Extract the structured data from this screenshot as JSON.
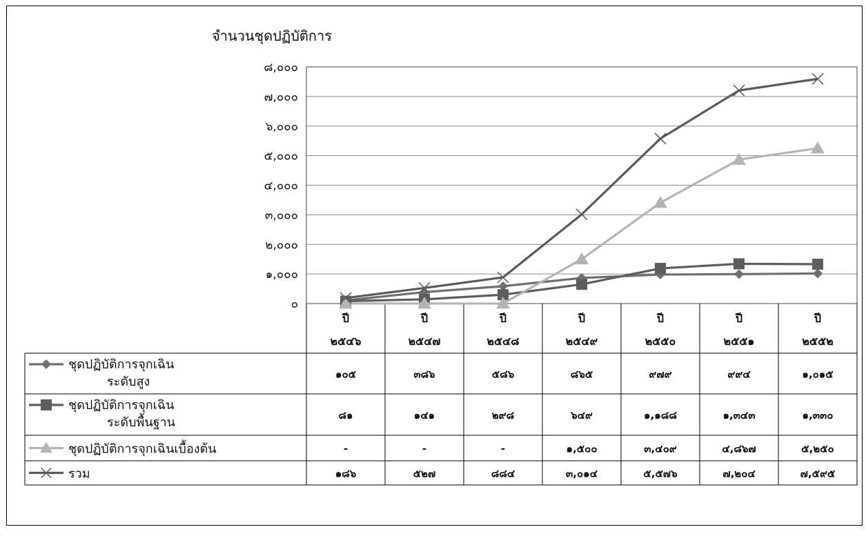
{
  "chart_data": {
    "type": "line",
    "ylabel": "จำนวนชุดปฏิบัติการ",
    "ylim": [
      0,
      8000
    ],
    "yticks": [
      "๐",
      "๑,๐๐๐",
      "๒,๐๐๐",
      "๓,๐๐๐",
      "๔,๐๐๐",
      "๕,๐๐๐",
      "๖,๐๐๐",
      "๗,๐๐๐",
      "๘,๐๐๐"
    ],
    "categories": [
      {
        "line1": "ปี",
        "line2": "๒๕๔๖"
      },
      {
        "line1": "ปี",
        "line2": "๒๕๔๗"
      },
      {
        "line1": "ปี",
        "line2": "๒๕๔๘"
      },
      {
        "line1": "ปี",
        "line2": "๒๕๔๙"
      },
      {
        "line1": "ปี",
        "line2": "๒๕๕๐"
      },
      {
        "line1": "ปี",
        "line2": "๒๕๕๑"
      },
      {
        "line1": "ปี",
        "line2": "๒๕๕๒"
      }
    ],
    "grid": true,
    "legend": "data-table",
    "series": [
      {
        "name": [
          "ชุดปฏิบัติการจุกเฉิน",
          "ระดับสูง"
        ],
        "marker": "diamond",
        "color": "#6e6e6e",
        "values": [
          105,
          386,
          586,
          865,
          979,
          994,
          1015
        ],
        "labels": [
          "๑๐๕",
          "๓๘๖",
          "๕๘๖",
          "๘๖๕",
          "๙๗๙",
          "๙๙๔",
          "๑,๐๑๕"
        ]
      },
      {
        "name": [
          "ชุดปฏิบัติการจุกเฉิน",
          "ระดับพื้นฐาน"
        ],
        "marker": "square",
        "color": "#5d5d5d",
        "values": [
          81,
          141,
          298,
          649,
          1188,
          1343,
          1330
        ],
        "labels": [
          "๘๑",
          "๑๔๑",
          "๒๙๘",
          "๖๔๙",
          "๑,๑๘๘",
          "๑,๓๔๓",
          "๑,๓๓๐"
        ]
      },
      {
        "name": [
          "ชุดปฏิบัติการจุกเฉินเบื้องต้น"
        ],
        "marker": "triangle",
        "color": "#b4b4b4",
        "values": [
          0,
          0,
          0,
          1500,
          3409,
          4867,
          5250
        ],
        "labels": [
          "-",
          "-",
          "-",
          "๑,๕๐๐",
          "๓,๔๐๙",
          "๔,๘๖๗",
          "๕,๒๕๐"
        ]
      },
      {
        "name": [
          "รวม"
        ],
        "marker": "x",
        "color": "#5a5a5a",
        "values": [
          186,
          527,
          884,
          3014,
          5576,
          7204,
          7595
        ],
        "labels": [
          "๑๘๖",
          "๕๒๗",
          "๘๘๔",
          "๓,๐๑๔",
          "๕,๕๗๖",
          "๗,๒๐๔",
          "๗,๕๙๕"
        ]
      }
    ]
  }
}
